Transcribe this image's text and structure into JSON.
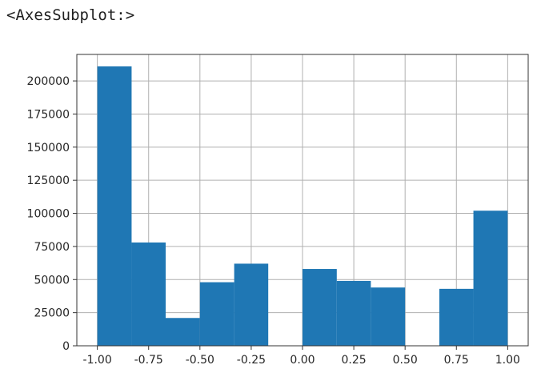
{
  "output_repr": "<AxesSubplot:>",
  "chart_data": {
    "type": "bar",
    "title": "",
    "xlabel": "",
    "ylabel": "",
    "grid": true,
    "bar_color": "#1f77b4",
    "xlim": [
      -1.1,
      1.1
    ],
    "ylim": [
      0,
      220000
    ],
    "x_ticks": [
      "-1.00",
      "-0.75",
      "-0.50",
      "-0.25",
      "0.00",
      "0.25",
      "0.50",
      "0.75",
      "1.00"
    ],
    "x_tick_values": [
      -1.0,
      -0.75,
      -0.5,
      -0.25,
      0.0,
      0.25,
      0.5,
      0.75,
      1.0
    ],
    "y_ticks": [
      "0",
      "25000",
      "50000",
      "75000",
      "100000",
      "125000",
      "150000",
      "175000",
      "200000"
    ],
    "y_tick_values": [
      0,
      25000,
      50000,
      75000,
      100000,
      125000,
      150000,
      175000,
      200000
    ],
    "bin_edges": [
      -1.0,
      -0.833,
      -0.667,
      -0.5,
      -0.333,
      -0.167,
      0.0,
      0.167,
      0.333,
      0.5,
      0.667,
      0.833,
      1.0
    ],
    "counts": [
      211000,
      78000,
      21000,
      48000,
      62000,
      0,
      58000,
      49000,
      44000,
      0,
      43000,
      102000
    ]
  }
}
